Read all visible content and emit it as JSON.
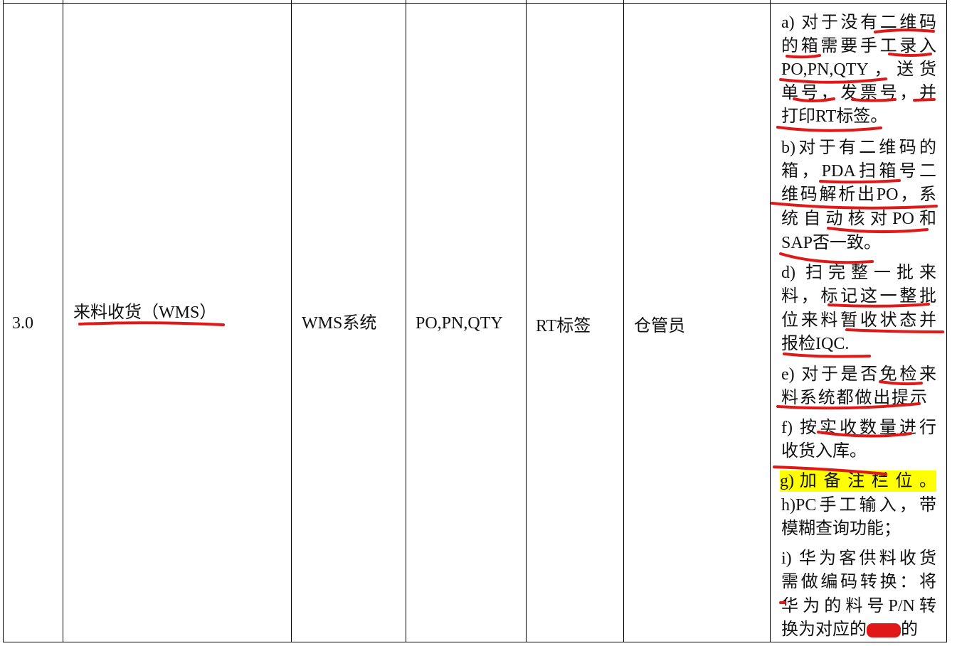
{
  "row": {
    "number": "3.0",
    "process": "来料收货（WMS）",
    "system": "WMS系统",
    "input": "PO,PN,QTY",
    "output": "RT标签",
    "role": "仓管员",
    "description_lines": [
      "a) 对于没有二维码",
      "的箱需要手工录入",
      "PO,PN,QTY，送货",
      "单号，发票号，并",
      "打印RT标签。",
      "b)对于有二维码的",
      "箱，PDA扫箱号二",
      "维码解析出PO，系",
      "统自动核对PO和",
      "SAP否一致。",
      "d) 扫完整一批来",
      "料，标记这一整批",
      "位来料暂收状态并",
      "报检IQC.",
      "e) 对于是否免检来",
      "料系统都做出提示",
      "f) 按实收数量进行",
      "收货入库。",
      "g) 加 备 注 栏 位 。",
      "h)PC手工输入，带",
      "模糊查询功能；",
      "i) 华为客供料收货",
      "需做编码转换：将",
      "华为的料号P/N转",
      "换为对应的",
      "的"
    ]
  },
  "colors": {
    "annotation": "#e01818",
    "highlight": "#ffff00"
  }
}
